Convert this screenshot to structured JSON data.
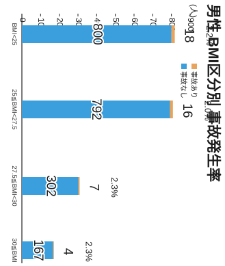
{
  "chart_data": {
    "type": "bar",
    "title": "男性 BMI区分別 事故発生率",
    "ylabel": "(人)",
    "ylim": [
      0,
      900
    ],
    "yticks": [
      0,
      100,
      200,
      300,
      400,
      500,
      600,
      700,
      800,
      900
    ],
    "grid": false,
    "stacked": true,
    "legend_position": "top-right",
    "categories": [
      "BMI<25",
      "25≦BMI<27.5",
      "27.5≦BMI<30",
      "30≦BMI"
    ],
    "series": [
      {
        "name": "事故なし",
        "color": "#3a9fdc",
        "values": [
          800,
          792,
          302,
          167
        ]
      },
      {
        "name": "事故あり",
        "color": "#e8a45c",
        "values": [
          18,
          16,
          7,
          4
        ]
      }
    ],
    "accident_rates": [
      "2.2%",
      "2.0%",
      "2.3%",
      "2.3%"
    ]
  }
}
